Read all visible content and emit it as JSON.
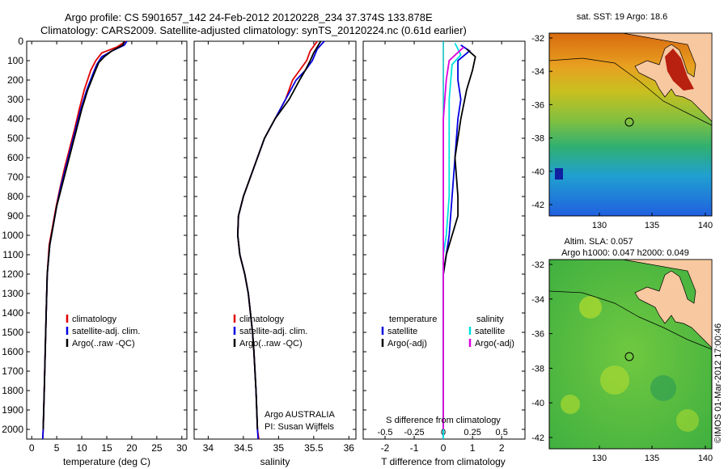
{
  "header": {
    "line1": "Argo profile: CS 5901657_142 24-Feb-2012 20120228_234 37.374S 133.878E",
    "line2": "Climatology: CARS2009. Satellite-adjusted climatology: synTS_20120224.nc (0.61d earlier)"
  },
  "colors": {
    "climatology": "#e00000",
    "satellite": "#0000e0",
    "argo": "#000000",
    "sat_s": "#00e0e0",
    "argo_s": "#e000e0"
  },
  "depth_axis": {
    "range": [
      0,
      2050
    ],
    "ticks": [
      0,
      100,
      200,
      300,
      400,
      500,
      600,
      700,
      800,
      900,
      1000,
      1100,
      1200,
      1300,
      1400,
      1500,
      1600,
      1700,
      1800,
      1900,
      2000
    ]
  },
  "chart_data": [
    {
      "type": "line",
      "xlabel": "temperature (deg C)",
      "xlim": [
        -1,
        31
      ],
      "xticks": [
        0,
        5,
        10,
        15,
        20,
        25,
        30
      ],
      "legend": [
        "climatology",
        "satellite-adj. clim.",
        "Argo(..raw -QC)"
      ],
      "series": [
        {
          "name": "climatology",
          "color": "climatology",
          "points": [
            [
              18.8,
              0
            ],
            [
              17,
              30
            ],
            [
              14,
              60
            ],
            [
              12.8,
              100
            ],
            [
              11.8,
              150
            ],
            [
              10.5,
              250
            ],
            [
              9.5,
              350
            ],
            [
              8.6,
              450
            ],
            [
              7.6,
              550
            ],
            [
              6.6,
              650
            ],
            [
              5.7,
              750
            ],
            [
              4.9,
              850
            ],
            [
              4.2,
              950
            ],
            [
              3.5,
              1050
            ],
            [
              3.1,
              1200
            ],
            [
              2.9,
              1400
            ],
            [
              2.7,
              1600
            ],
            [
              2.5,
              1800
            ],
            [
              2.3,
              2000
            ],
            [
              2.2,
              2050
            ]
          ]
        },
        {
          "name": "satellite-adj. clim.",
          "color": "satellite",
          "points": [
            [
              19,
              0
            ],
            [
              18.5,
              20
            ],
            [
              16,
              50
            ],
            [
              14,
              80
            ],
            [
              13,
              120
            ],
            [
              12.2,
              170
            ],
            [
              11,
              250
            ],
            [
              9.8,
              350
            ],
            [
              8.8,
              450
            ],
            [
              7.8,
              550
            ],
            [
              6.8,
              650
            ],
            [
              5.8,
              750
            ],
            [
              5,
              850
            ],
            [
              4.3,
              950
            ],
            [
              3.6,
              1050
            ],
            [
              3.1,
              1200
            ],
            [
              2.9,
              1400
            ],
            [
              2.7,
              1600
            ],
            [
              2.5,
              1800
            ],
            [
              2.3,
              2000
            ],
            [
              2.2,
              2050
            ]
          ]
        },
        {
          "name": "Argo(..raw -QC)",
          "color": "argo",
          "points": [
            [
              18.5,
              0
            ],
            [
              18.2,
              20
            ],
            [
              16,
              50
            ],
            [
              14.5,
              80
            ],
            [
              13.4,
              110
            ],
            [
              12.6,
              160
            ],
            [
              11.2,
              250
            ],
            [
              10,
              350
            ],
            [
              9,
              450
            ],
            [
              8,
              550
            ],
            [
              7,
              650
            ],
            [
              6,
              750
            ],
            [
              5,
              850
            ],
            [
              4.3,
              950
            ],
            [
              3.6,
              1050
            ],
            [
              3.1,
              1200
            ],
            [
              2.9,
              1400
            ],
            [
              2.7,
              1600
            ],
            [
              2.5,
              1800
            ],
            [
              2.3,
              2000
            ]
          ]
        }
      ]
    },
    {
      "type": "line",
      "xlabel": "salinity",
      "xlim": [
        33.8,
        36.1
      ],
      "xticks": [
        34,
        34.5,
        35,
        35.5,
        36
      ],
      "xticklabels": [
        "34",
        "34.5",
        "35",
        "35.5",
        "36"
      ],
      "legend": [
        "climatology",
        "satellite-adj. clim.",
        "Argo(..raw -QC)"
      ],
      "annotation": [
        "Argo AUSTRALIA",
        "PI: Susan Wijffels"
      ],
      "series": [
        {
          "name": "climatology",
          "color": "climatology",
          "points": [
            [
              35.55,
              0
            ],
            [
              35.45,
              50
            ],
            [
              35.4,
              100
            ],
            [
              35.3,
              150
            ],
            [
              35.2,
              200
            ],
            [
              35.1,
              300
            ],
            [
              34.95,
              400
            ],
            [
              34.8,
              500
            ],
            [
              34.7,
              600
            ],
            [
              34.6,
              700
            ],
            [
              34.5,
              800
            ],
            [
              34.43,
              900
            ],
            [
              34.42,
              1000
            ],
            [
              34.45,
              1100
            ],
            [
              34.52,
              1200
            ],
            [
              34.57,
              1300
            ],
            [
              34.6,
              1400
            ],
            [
              34.63,
              1500
            ],
            [
              34.65,
              1600
            ],
            [
              34.68,
              1800
            ],
            [
              34.7,
              2000
            ],
            [
              34.72,
              2050
            ]
          ]
        },
        {
          "name": "satellite-adj. clim.",
          "color": "satellite",
          "points": [
            [
              35.65,
              0
            ],
            [
              35.55,
              40
            ],
            [
              35.48,
              100
            ],
            [
              35.38,
              150
            ],
            [
              35.25,
              200
            ],
            [
              35.1,
              300
            ],
            [
              34.95,
              400
            ],
            [
              34.8,
              500
            ],
            [
              34.7,
              600
            ],
            [
              34.6,
              700
            ],
            [
              34.5,
              800
            ],
            [
              34.43,
              900
            ],
            [
              34.42,
              1000
            ],
            [
              34.45,
              1100
            ],
            [
              34.52,
              1200
            ],
            [
              34.57,
              1300
            ],
            [
              34.6,
              1400
            ],
            [
              34.63,
              1500
            ],
            [
              34.65,
              1600
            ],
            [
              34.68,
              1800
            ],
            [
              34.7,
              2000
            ],
            [
              34.71,
              2050
            ]
          ]
        },
        {
          "name": "Argo(..raw -QC)",
          "color": "argo",
          "points": [
            [
              35.6,
              0
            ],
            [
              35.5,
              60
            ],
            [
              35.45,
              100
            ],
            [
              35.38,
              150
            ],
            [
              35.3,
              200
            ],
            [
              35.15,
              300
            ],
            [
              34.95,
              400
            ],
            [
              34.8,
              500
            ],
            [
              34.7,
              600
            ],
            [
              34.6,
              700
            ],
            [
              34.5,
              800
            ],
            [
              34.43,
              900
            ],
            [
              34.42,
              1000
            ],
            [
              34.45,
              1100
            ],
            [
              34.52,
              1200
            ],
            [
              34.57,
              1300
            ],
            [
              34.6,
              1400
            ],
            [
              34.63,
              1500
            ],
            [
              34.65,
              1600
            ],
            [
              34.68,
              1800
            ],
            [
              34.7,
              2000
            ]
          ]
        }
      ]
    },
    {
      "type": "line",
      "xlabel": "T difference from climatology",
      "xlim": [
        -2.75,
        2.8
      ],
      "xticks": [
        -2,
        -1,
        0,
        1,
        2
      ],
      "top_label": "S difference from climatology",
      "top_ticks": [
        "-0.5",
        "-0.25",
        "0",
        "0.25",
        "0.5"
      ],
      "legend_temperature": "temperature",
      "legend_salinity": "salinity",
      "legend_items": [
        "satellite",
        "Argo(-adj)"
      ],
      "series": [
        {
          "name": "satellite",
          "color": "satellite",
          "points": [
            [
              0.6,
              20
            ],
            [
              0.9,
              50
            ],
            [
              0.5,
              100
            ],
            [
              0.5,
              200
            ],
            [
              0.6,
              300
            ],
            [
              0.5,
              400
            ],
            [
              0.4,
              600
            ],
            [
              0.3,
              800
            ],
            [
              0.2,
              1000
            ],
            [
              0.1,
              1100
            ],
            [
              0,
              1200
            ],
            [
              0,
              2050
            ]
          ]
        },
        {
          "name": "Argo(-adj)",
          "color": "argo",
          "points": [
            [
              0.8,
              40
            ],
            [
              1.1,
              80
            ],
            [
              1,
              150
            ],
            [
              0.8,
              250
            ],
            [
              0.6,
              400
            ],
            [
              0.4,
              600
            ],
            [
              0.5,
              800
            ],
            [
              0.5,
              900
            ],
            [
              0.3,
              1000
            ],
            [
              0.1,
              1100
            ],
            [
              0,
              1200
            ],
            [
              0,
              2000
            ]
          ]
        },
        {
          "name": "satellite",
          "color": "sat_s",
          "points": [
            [
              0.4,
              10
            ],
            [
              0.6,
              70
            ],
            [
              0.3,
              120
            ],
            [
              0.2,
              300
            ],
            [
              0.2,
              500
            ],
            [
              0.2,
              800
            ],
            [
              0.1,
              1000
            ],
            [
              0,
              1100
            ],
            [
              0,
              2050
            ]
          ]
        },
        {
          "name": "Argo(-adj)",
          "color": "argo_s",
          "points": [
            [
              0.7,
              30
            ],
            [
              0.2,
              100
            ],
            [
              0.1,
              200
            ],
            [
              0,
              400
            ],
            [
              0,
              800
            ],
            [
              0,
              1100
            ],
            [
              0,
              2000
            ]
          ]
        }
      ]
    }
  ],
  "maps": {
    "sst": {
      "title": "sat. SST: 19 Argo: 18.6",
      "yticks": [
        "-32",
        "-34",
        "-36",
        "-38",
        "-40",
        "-42"
      ],
      "xticks": [
        "130",
        "135",
        "140"
      ]
    },
    "sla": {
      "title1": "Altim. SLA: 0.057",
      "title2": "Argo h1000: 0.047 h2000: 0.049",
      "yticks": [
        "-32",
        "-34",
        "-36",
        "-38",
        "-40",
        "-42"
      ],
      "xticks": [
        "130",
        "135",
        "140"
      ]
    }
  },
  "credit": "©IMOS 01-Mar-2012 17:00:46"
}
